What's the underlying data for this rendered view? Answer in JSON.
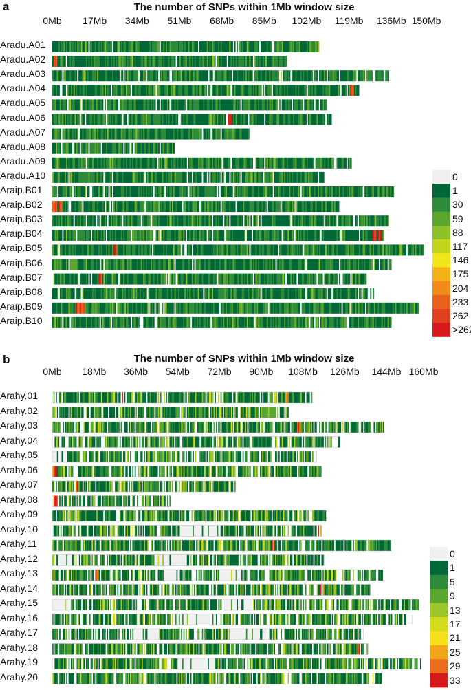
{
  "chart_data": [
    {
      "panel": "a",
      "type": "heatmap",
      "title": "The number of SNPs within 1Mb window size",
      "x_unit": "Mb",
      "xlim": [
        0,
        150
      ],
      "x_ticks": [
        "0Mb",
        "17Mb",
        "34Mb",
        "51Mb",
        "68Mb",
        "85Mb",
        "102Mb",
        "119Mb",
        "136Mb",
        "150Mb"
      ],
      "x_tick_values": [
        0,
        17,
        34,
        51,
        68,
        85,
        102,
        119,
        136,
        150
      ],
      "chromosomes": [
        {
          "name": "Aradu.A01",
          "length": 107,
          "gap_density": 0.1,
          "hot": []
        },
        {
          "name": "Aradu.A02",
          "length": 94,
          "gap_density": 0.08,
          "hot": [
            1
          ]
        },
        {
          "name": "Aradu.A03",
          "length": 135,
          "gap_density": 0.12,
          "hot": []
        },
        {
          "name": "Aradu.A04",
          "length": 123,
          "gap_density": 0.07,
          "hot": [
            120
          ]
        },
        {
          "name": "Aradu.A05",
          "length": 110,
          "gap_density": 0.18,
          "hot": []
        },
        {
          "name": "Aradu.A06",
          "length": 112,
          "gap_density": 0.08,
          "hot": [
            71
          ]
        },
        {
          "name": "Aradu.A07",
          "length": 79,
          "gap_density": 0.1,
          "hot": []
        },
        {
          "name": "Aradu.A08",
          "length": 49,
          "gap_density": 0.2,
          "hot": []
        },
        {
          "name": "Aradu.A09",
          "length": 120,
          "gap_density": 0.12,
          "hot": []
        },
        {
          "name": "Aradu.A10",
          "length": 109,
          "gap_density": 0.12,
          "hot": []
        },
        {
          "name": "Araip.B01",
          "length": 137,
          "gap_density": 0.1,
          "hot": []
        },
        {
          "name": "Araip.B02",
          "length": 115,
          "gap_density": 0.12,
          "hot": [
            0,
            1,
            3
          ]
        },
        {
          "name": "Araip.B03",
          "length": 135,
          "gap_density": 0.1,
          "hot": []
        },
        {
          "name": "Araip.B04",
          "length": 133,
          "gap_density": 0.1,
          "hot": [
            129,
            131
          ]
        },
        {
          "name": "Araip.B05",
          "length": 149,
          "gap_density": 0.1,
          "hot": [
            25
          ]
        },
        {
          "name": "Araip.B06",
          "length": 136,
          "gap_density": 0.1,
          "hot": []
        },
        {
          "name": "Araip.B07",
          "length": 126,
          "gap_density": 0.12,
          "hot": [
            19
          ]
        },
        {
          "name": "Araip.B08",
          "length": 129,
          "gap_density": 0.1,
          "hot": []
        },
        {
          "name": "Araip.B09",
          "length": 147,
          "gap_density": 0.1,
          "hot": [
            10,
            11,
            12
          ]
        },
        {
          "name": "Araip.B10",
          "length": 136,
          "gap_density": 0.1,
          "hot": []
        }
      ],
      "legend": [
        "0",
        "1",
        "30",
        "59",
        "88",
        "117",
        "146",
        "175",
        "204",
        "233",
        "262",
        ">262"
      ],
      "legend_colors": [
        "#f0f0f0",
        "#006837",
        "#2e8b3a",
        "#5aa62e",
        "#8ec02a",
        "#c3d51a",
        "#f2e51a",
        "#f4b016",
        "#f08a1a",
        "#e8621e",
        "#e2401e",
        "#d7191c"
      ]
    },
    {
      "panel": "b",
      "type": "heatmap",
      "title": "The number of SNPs within 1Mb window size",
      "x_unit": "Mb",
      "xlim": [
        0,
        160
      ],
      "x_ticks": [
        "0Mb",
        "18Mb",
        "36Mb",
        "54Mb",
        "72Mb",
        "90Mb",
        "108Mb",
        "126Mb",
        "144Mb",
        "160Mb"
      ],
      "x_tick_values": [
        0,
        18,
        36,
        54,
        72,
        90,
        108,
        126,
        144,
        160
      ],
      "chromosomes": [
        {
          "name": "Arahy.01",
          "length": 112,
          "gap_density": 0.3,
          "hot": [
            30,
            101
          ]
        },
        {
          "name": "Arahy.02",
          "length": 102,
          "gap_density": 0.35,
          "hot": []
        },
        {
          "name": "Arahy.03",
          "length": 143,
          "gap_density": 0.35,
          "hot": [
            106
          ]
        },
        {
          "name": "Arahy.04",
          "length": 124,
          "gap_density": 0.35,
          "hot": []
        },
        {
          "name": "Arahy.05",
          "length": 114,
          "gap_density": 0.4,
          "hot": [],
          "empty": [
            [
              0,
              6
            ]
          ]
        },
        {
          "name": "Arahy.06",
          "length": 116,
          "gap_density": 0.25,
          "hot": [
            0,
            1
          ]
        },
        {
          "name": "Arahy.07",
          "length": 79,
          "gap_density": 0.3,
          "hot": [
            10
          ]
        },
        {
          "name": "Arahy.08",
          "length": 51,
          "gap_density": 0.35,
          "hot": [
            1,
            2
          ]
        },
        {
          "name": "Arahy.09",
          "length": 118,
          "gap_density": 0.3,
          "hot": []
        },
        {
          "name": "Arahy.10",
          "length": 116,
          "gap_density": 0.4,
          "hot": [
            115
          ],
          "empty": [
            [
              55,
              72
            ]
          ]
        },
        {
          "name": "Arahy.11",
          "length": 146,
          "gap_density": 0.3,
          "hot": [
            95
          ]
        },
        {
          "name": "Arahy.12",
          "length": 117,
          "gap_density": 0.45,
          "hot": [],
          "empty": [
            [
              2,
              10
            ],
            [
              44,
              58
            ]
          ]
        },
        {
          "name": "Arahy.13",
          "length": 143,
          "gap_density": 0.45,
          "hot": [
            19
          ],
          "empty": [
            [
              48,
              55
            ],
            [
              72,
              82
            ]
          ]
        },
        {
          "name": "Arahy.14",
          "length": 137,
          "gap_density": 0.35,
          "hot": [
            116
          ]
        },
        {
          "name": "Arahy.15",
          "length": 158,
          "gap_density": 0.4,
          "hot": [],
          "empty": [
            [
              0,
              8
            ],
            [
              74,
              86
            ]
          ]
        },
        {
          "name": "Arahy.16",
          "length": 155,
          "gap_density": 0.4,
          "hot": [],
          "empty": [
            [
              52,
              68
            ]
          ]
        },
        {
          "name": "Arahy.17",
          "length": 134,
          "gap_density": 0.4,
          "hot": [],
          "empty": [
            [
              34,
              46
            ],
            [
              76,
              93
            ]
          ]
        },
        {
          "name": "Arahy.18",
          "length": 136,
          "gap_density": 0.35,
          "hot": [
            132
          ]
        },
        {
          "name": "Arahy.19",
          "length": 159,
          "gap_density": 0.35,
          "hot": [],
          "empty": [
            [
              54,
              70
            ]
          ]
        },
        {
          "name": "Arahy.20",
          "length": 142,
          "gap_density": 0.3,
          "hot": []
        }
      ],
      "legend": [
        "0",
        "1",
        "5",
        "9",
        "13",
        "17",
        "21",
        "25",
        "29",
        "33"
      ],
      "legend_colors": [
        "#f0f0f0",
        "#006837",
        "#2e8b3a",
        "#5aa62e",
        "#9cc52a",
        "#d3dc1c",
        "#f4e11a",
        "#f2a617",
        "#ea6c1d",
        "#d7191c"
      ]
    }
  ]
}
